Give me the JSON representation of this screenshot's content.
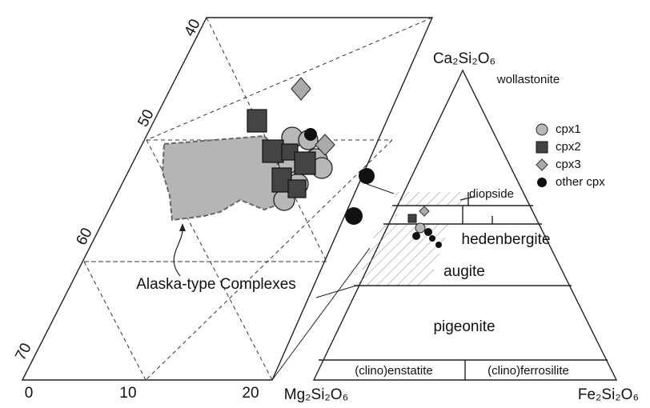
{
  "zoom_ticks": {
    "left": [
      "40",
      "50",
      "60",
      "70"
    ],
    "bottom": [
      "0",
      "10",
      "20"
    ]
  },
  "annotation": "Alaska-type Complexes",
  "endmembers": {
    "top": "Ca₂Si₂O₆",
    "left": "Mg₂Si₂O₆",
    "right": "Fe₂Si₂O₆"
  },
  "fields": {
    "wollastonite": "wollastonite",
    "diopside": "diopside",
    "hedenbergite": "hedenbergite",
    "augite": "augite",
    "pigeonite": "pigeonite",
    "clinoenstatite": "(clino)enstatite",
    "clinoferrosilite": "(clino)ferrosilite"
  },
  "legend": [
    "cpx1",
    "cpx2",
    "cpx3",
    "other cpx"
  ]
}
